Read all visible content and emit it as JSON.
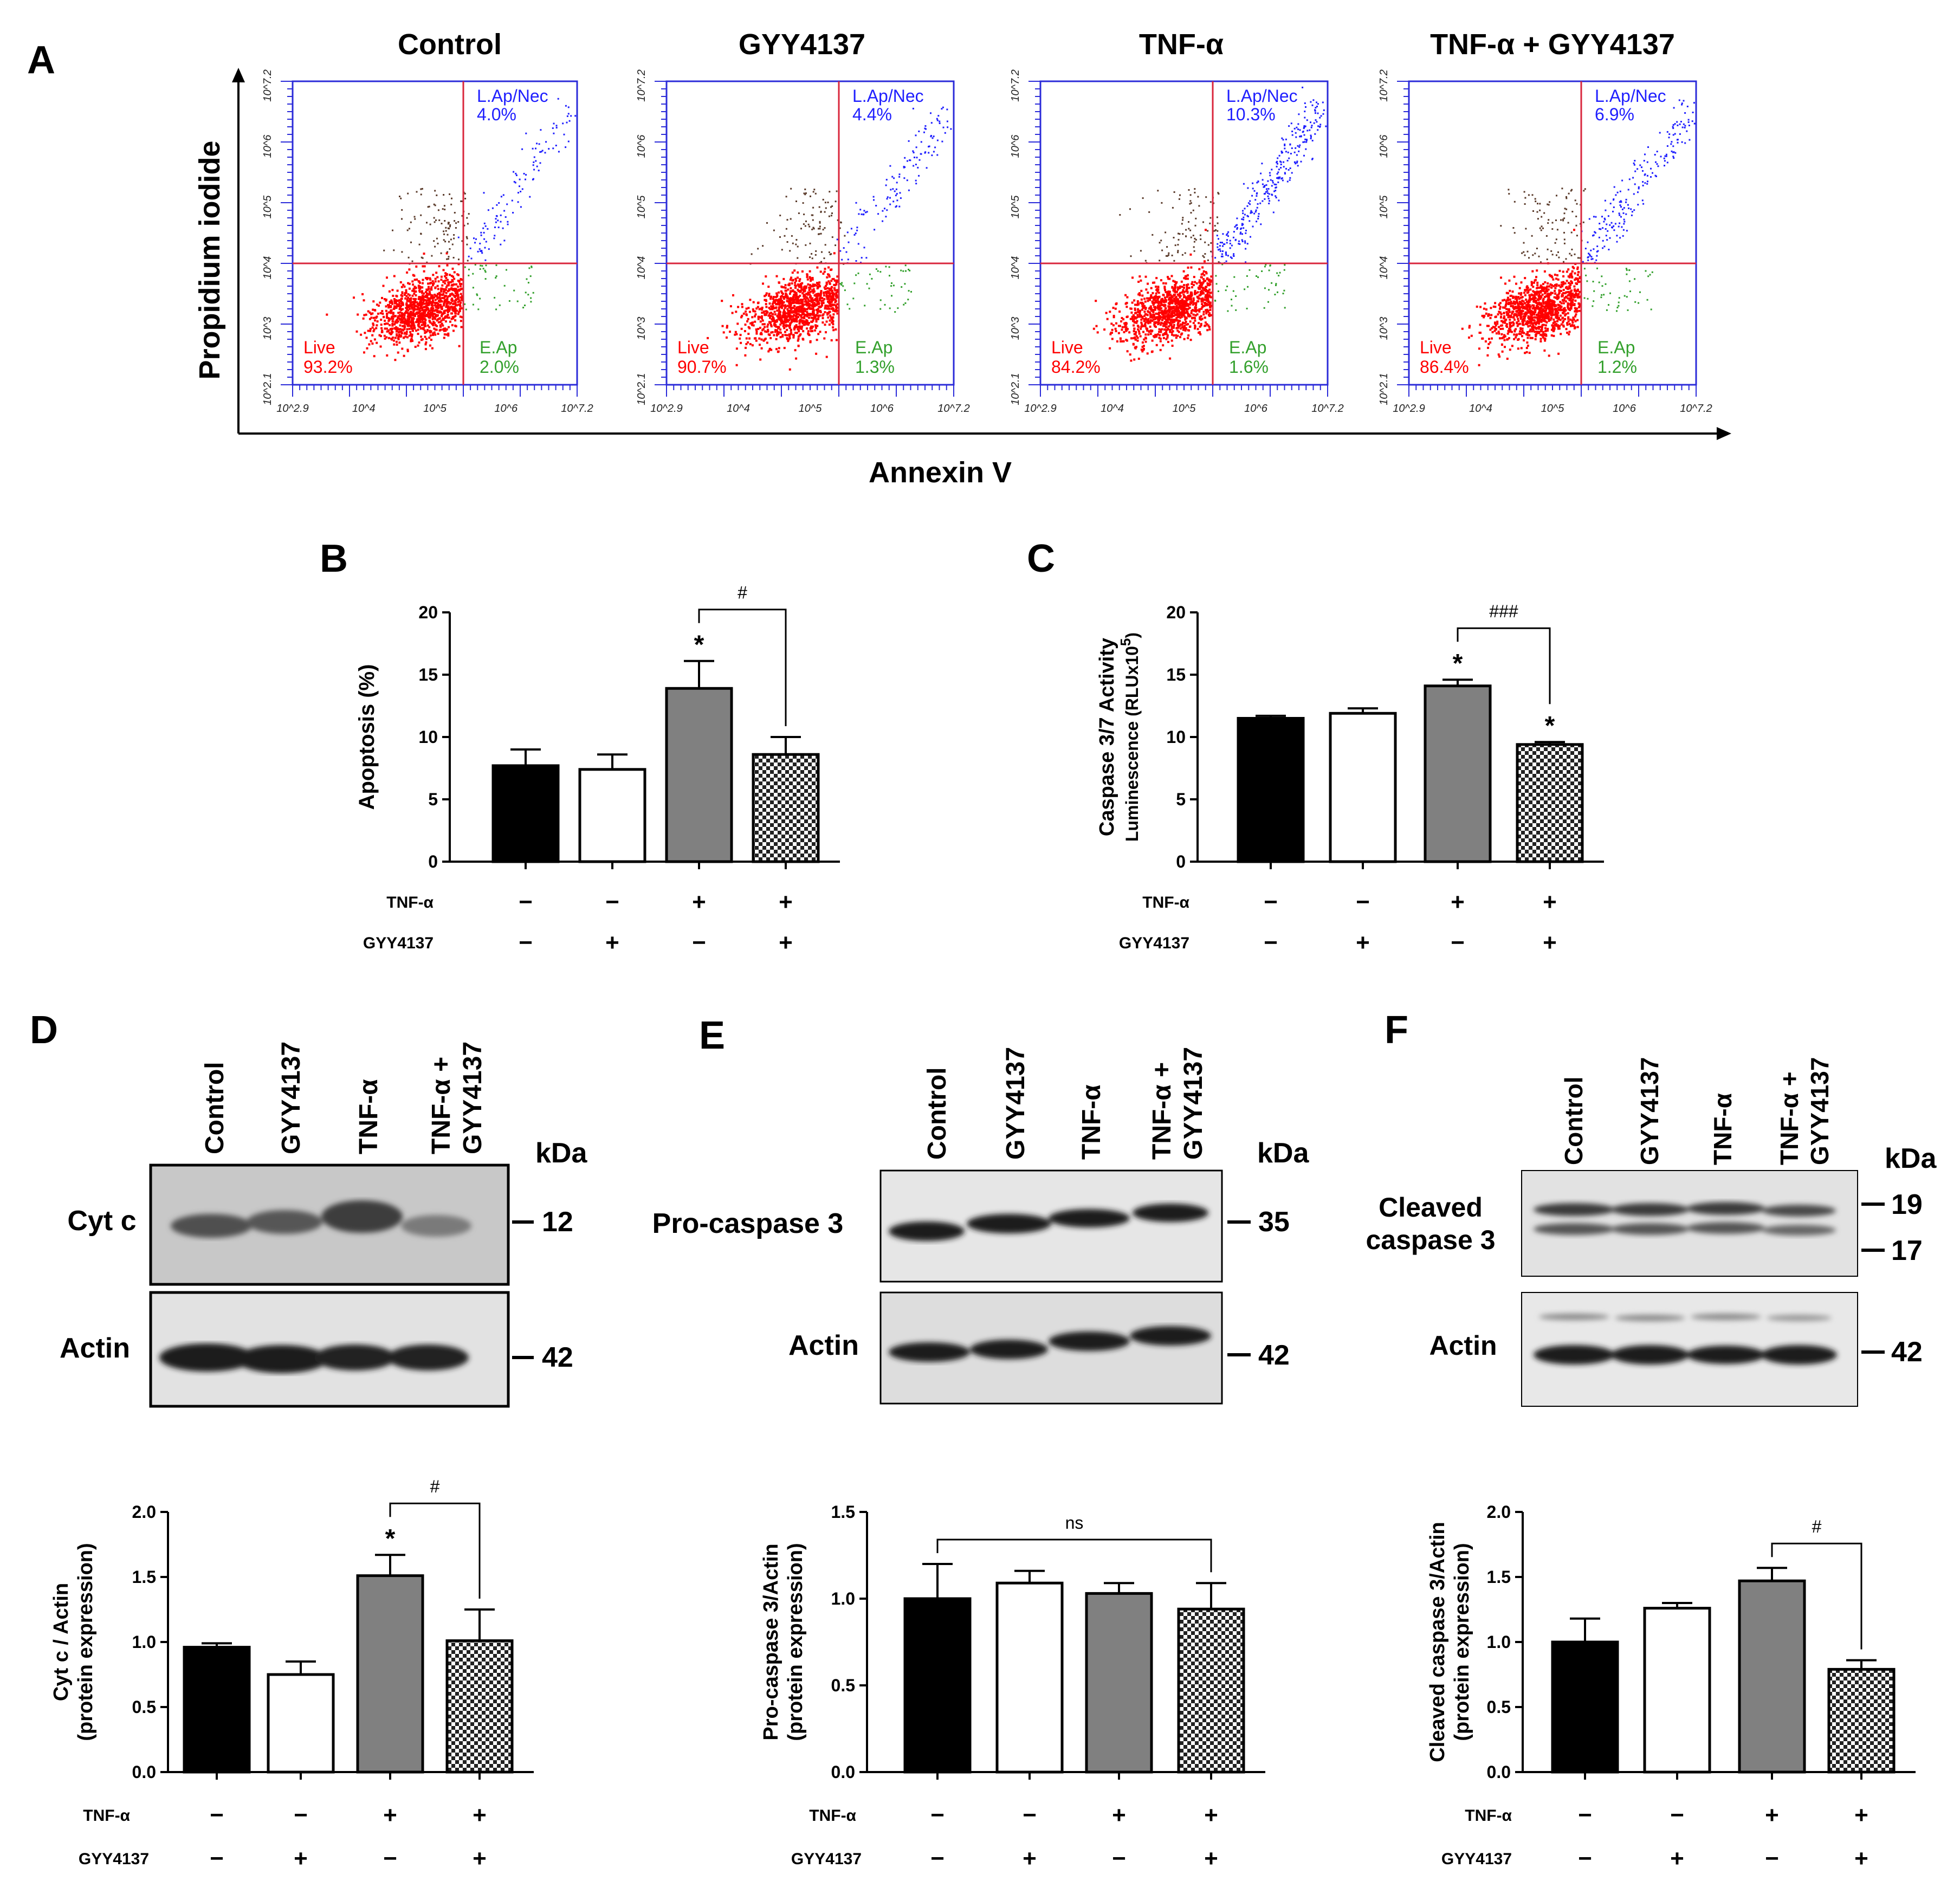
{
  "panel_a": {
    "letter": "A",
    "y_axis_title": "Propidium iodide",
    "x_axis_title": "Annexin V",
    "y_ticks": [
      "10^2.1",
      "10^3",
      "10^4",
      "10^5",
      "10^6",
      "10^7.2"
    ],
    "x_ticks": [
      "10^2.9",
      "10^4",
      "10^5",
      "10^6",
      "10^7.2"
    ],
    "plots": [
      {
        "title": "Control",
        "lap_label": "L.Ap/Nec",
        "lap": "4.0%",
        "live_label": "Live",
        "live": "93.2%",
        "eap_label": "E.Ap",
        "eap": "2.0%"
      },
      {
        "title": "GYY4137",
        "lap_label": "L.Ap/Nec",
        "lap": "4.4%",
        "live_label": "Live",
        "live": "90.7%",
        "eap_label": "E.Ap",
        "eap": "1.3%"
      },
      {
        "title": "TNF-α",
        "lap_label": "L.Ap/Nec",
        "lap": "10.3%",
        "live_label": "Live",
        "live": "84.2%",
        "eap_label": "E.Ap",
        "eap": "1.6%"
      },
      {
        "title": "TNF-α + GYY4137",
        "lap_label": "L.Ap/Nec",
        "lap": "6.9%",
        "live_label": "Live",
        "live": "86.4%",
        "eap_label": "E.Ap",
        "eap": "1.2%"
      }
    ],
    "colors": {
      "live": "#ff0000",
      "eap": "#33a02c",
      "lap": "#1f1fff",
      "gate": "#d9263c",
      "frame": "#2b2bd9"
    }
  },
  "condition_labels": {
    "tnf": "TNF-α",
    "gyy": "GYY4137"
  },
  "condition_signs": {
    "tnf": [
      "−",
      "−",
      "+",
      "+"
    ],
    "gyy": [
      "−",
      "+",
      "−",
      "+"
    ]
  },
  "bar_fills": [
    "#000000",
    "#ffffff",
    "#808080",
    "checker"
  ],
  "chart_data": [
    {
      "panel": "B",
      "type": "bar",
      "ylabel": "Apoptosis (%)",
      "ylim": [
        0,
        20
      ],
      "yticks": [
        "0",
        "5",
        "10",
        "15",
        "20"
      ],
      "values": [
        7.7,
        7.4,
        13.9,
        8.6
      ],
      "errors": [
        1.3,
        1.2,
        2.2,
        1.4
      ],
      "marks": [
        "",
        "",
        "*",
        ""
      ],
      "bracket": {
        "from": 2,
        "to": 3,
        "label": "#"
      }
    },
    {
      "panel": "C",
      "type": "bar",
      "ylabel": "Caspase 3/7 Activity",
      "ylabel2": "Luminescence (RLUx10",
      "ylabel2_sup": "5",
      "ylabel2_end": ")",
      "ylim": [
        0,
        20
      ],
      "yticks": [
        "0",
        "5",
        "10",
        "15",
        "20"
      ],
      "values": [
        11.5,
        11.9,
        14.1,
        9.4
      ],
      "errors": [
        0.2,
        0.4,
        0.5,
        0.2
      ],
      "marks": [
        "",
        "",
        "*",
        "*"
      ],
      "bracket": {
        "from": 2,
        "to": 3,
        "label": "###"
      }
    },
    {
      "panel": "D",
      "type": "bar",
      "ylabel": "Cyt c / Actin",
      "ylabel2": "(protein expression)",
      "ylim": [
        0,
        2.0
      ],
      "yticks": [
        "0.0",
        "0.5",
        "1.0",
        "1.5",
        "2.0"
      ],
      "values": [
        0.96,
        0.75,
        1.51,
        1.01
      ],
      "errors": [
        0.03,
        0.1,
        0.16,
        0.24
      ],
      "marks": [
        "",
        "",
        "*",
        ""
      ],
      "bracket": {
        "from": 2,
        "to": 3,
        "label": "#"
      }
    },
    {
      "panel": "E",
      "type": "bar",
      "ylabel": "Pro-caspase 3/Actin",
      "ylabel2": "(protein expression)",
      "ylim": [
        0,
        1.5
      ],
      "yticks": [
        "0.0",
        "0.5",
        "1.0",
        "1.5"
      ],
      "values": [
        1.0,
        1.09,
        1.03,
        0.94
      ],
      "errors": [
        0.2,
        0.07,
        0.06,
        0.15
      ],
      "marks": [
        "",
        "",
        "",
        ""
      ],
      "bracket": {
        "from": 0,
        "to": 3,
        "label": "ns"
      }
    },
    {
      "panel": "F",
      "type": "bar",
      "ylabel": "Cleaved caspase 3/Actin",
      "ylabel2": "(protein expression)",
      "ylim": [
        0,
        2.0
      ],
      "yticks": [
        "0.0",
        "0.5",
        "1.0",
        "1.5",
        "2.0"
      ],
      "values": [
        1.0,
        1.26,
        1.47,
        0.79
      ],
      "errors": [
        0.18,
        0.04,
        0.1,
        0.07
      ],
      "marks": [
        "",
        "",
        "",
        ""
      ],
      "bracket": {
        "from": 2,
        "to": 3,
        "label": "#"
      }
    }
  ],
  "blots": {
    "lanes": {
      "control": "Control",
      "gyy": "GYY4137",
      "tnf": "TNF-α",
      "combo_1": "TNF-α +",
      "combo_2": "GYY4137"
    },
    "kda": "kDa",
    "D": {
      "letter": "D",
      "target": "Cyt c",
      "target_kda": "12",
      "loading": "Actin",
      "loading_kda": "42"
    },
    "E": {
      "letter": "E",
      "target": "Pro-caspase 3",
      "target_kda": "35",
      "loading": "Actin",
      "loading_kda": "42"
    },
    "F": {
      "letter": "F",
      "target_1": "Cleaved",
      "target_2": "caspase 3",
      "kda_upper": "19",
      "kda_lower": "17",
      "loading": "Actin",
      "loading_kda": "42"
    }
  }
}
